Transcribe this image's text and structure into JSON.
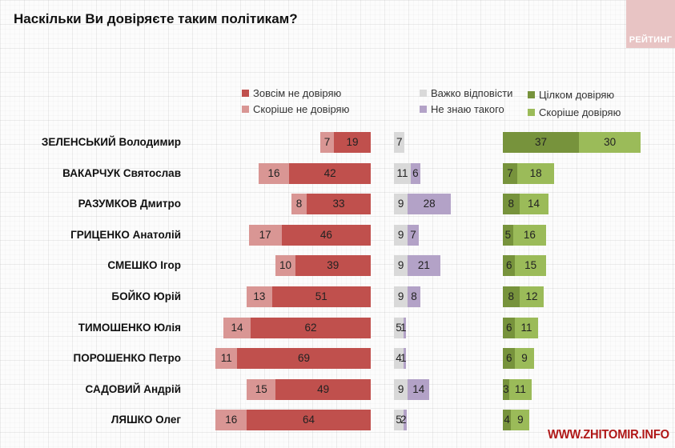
{
  "header": {
    "title": "Наскільки Ви довіряєте таким політикам?",
    "badge": "РЕЙТИНГ"
  },
  "watermark": "WWW.ZHITOMIR.INFO",
  "colors": {
    "strong_distrust": "#c0504d",
    "rather_distrust": "#d99694",
    "hard_to_say": "#d9d9d9",
    "unknown": "#b3a2c7",
    "fully_trust": "#77933c",
    "rather_trust": "#9bbb59"
  },
  "legend": [
    {
      "key": "strong_distrust",
      "label": "Зовсім не довіряю"
    },
    {
      "key": "rather_distrust",
      "label": "Скоріше не довіряю"
    },
    {
      "key": "hard_to_say",
      "label": "Важко відповісти"
    },
    {
      "key": "unknown",
      "label": "Не знаю такого"
    },
    {
      "key": "fully_trust",
      "label": "Цілком довіряю"
    },
    {
      "key": "rather_trust",
      "label": "Скоріше довіряю"
    }
  ],
  "chart_data": {
    "type": "bar",
    "orientation": "horizontal-stacked",
    "title": "Наскільки Ви довіряєте таким політикам?",
    "xlabel": "",
    "ylabel": "",
    "grid": false,
    "legend_position": "top",
    "categories": [
      "ЗЕЛЕНСЬКИЙ Володимир",
      "ВАКАРЧУК Святослав",
      "РАЗУМКОВ Дмитро",
      "ГРИЦЕНКО Анатолій",
      "СМЕШКО Ігор",
      "БОЙКО Юрій",
      "ТИМОШЕНКО Юлія",
      "ПОРОШЕНКО Петро",
      "САДОВИЙ Андрій",
      "ЛЯШКО Олег"
    ],
    "series": [
      {
        "name": "Скоріше не довіряю",
        "key": "rather_distrust",
        "panel": "left",
        "values": [
          7,
          16,
          8,
          17,
          10,
          13,
          14,
          11,
          15,
          16
        ]
      },
      {
        "name": "Зовсім не довіряю",
        "key": "strong_distrust",
        "panel": "left",
        "values": [
          19,
          42,
          33,
          46,
          39,
          51,
          62,
          69,
          49,
          64
        ]
      },
      {
        "name": "Важко відповісти",
        "key": "hard_to_say",
        "panel": "middle",
        "values": [
          7,
          11,
          9,
          9,
          9,
          9,
          5,
          4,
          9,
          5
        ]
      },
      {
        "name": "Не знаю такого",
        "key": "unknown",
        "panel": "middle",
        "values": [
          0,
          6,
          28,
          7,
          21,
          8,
          1,
          1,
          14,
          2
        ]
      },
      {
        "name": "Цілком довіряю",
        "key": "fully_trust",
        "panel": "right",
        "values": [
          37,
          7,
          8,
          5,
          6,
          8,
          6,
          6,
          3,
          4
        ]
      },
      {
        "name": "Скоріше довіряю",
        "key": "rather_trust",
        "panel": "right",
        "values": [
          30,
          18,
          14,
          16,
          15,
          12,
          11,
          9,
          11,
          9
        ]
      }
    ],
    "unit": "%"
  }
}
